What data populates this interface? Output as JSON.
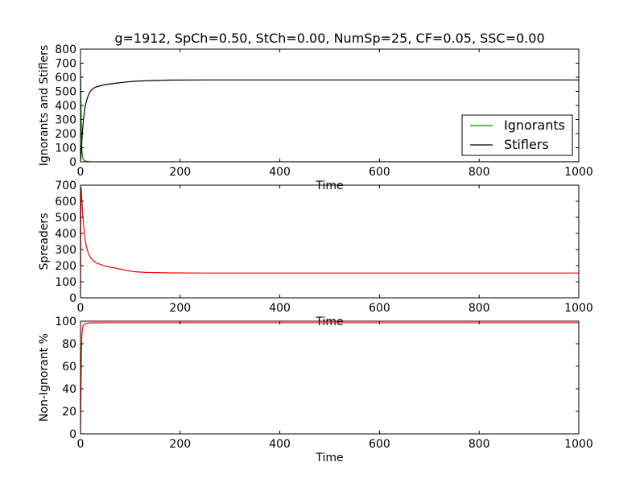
{
  "chart_data": [
    {
      "type": "line",
      "title": "g=1912, SpCh=0.50, StCh=0.00, NumSp=25, CF=0.05, SSC=0.00",
      "xlabel": "Time",
      "ylabel": "Ignorants and Stiflers",
      "xlim": [
        0,
        1000
      ],
      "ylim": [
        0,
        800
      ],
      "xticks": [
        0,
        200,
        400,
        600,
        800,
        1000
      ],
      "yticks": [
        0,
        100,
        200,
        300,
        400,
        500,
        600,
        700,
        800
      ],
      "legend": "lower-right",
      "series": [
        {
          "name": "Ignorants",
          "color": "#008000",
          "x": [
            0,
            1,
            2,
            3,
            5,
            8,
            12,
            20,
            50,
            100,
            200,
            400,
            600,
            800,
            1000
          ],
          "y": [
            700,
            400,
            180,
            70,
            20,
            8,
            3,
            1,
            0,
            0,
            0,
            0,
            0,
            0,
            0
          ]
        },
        {
          "name": "Stiflers",
          "color": "#000000",
          "x": [
            0,
            2,
            4,
            6,
            8,
            10,
            14,
            18,
            22,
            26,
            30,
            40,
            50,
            70,
            90,
            110,
            130,
            150,
            180,
            250,
            400,
            600,
            800,
            1000
          ],
          "y": [
            0,
            110,
            220,
            300,
            360,
            405,
            455,
            490,
            510,
            522,
            530,
            540,
            548,
            558,
            566,
            572,
            575,
            577,
            580,
            581,
            581,
            581,
            581,
            581
          ]
        }
      ]
    },
    {
      "type": "line",
      "xlabel": "Time",
      "ylabel": "Spreaders",
      "xlim": [
        0,
        1000
      ],
      "ylim": [
        0,
        700
      ],
      "xticks": [
        0,
        200,
        400,
        600,
        800,
        1000
      ],
      "yticks": [
        0,
        100,
        200,
        300,
        400,
        500,
        600,
        700
      ],
      "series": [
        {
          "color": "#ff0000",
          "x": [
            0,
            1,
            2,
            3,
            4,
            6,
            8,
            10,
            12,
            15,
            18,
            22,
            26,
            30,
            40,
            50,
            60,
            70,
            80,
            90,
            100,
            110,
            120,
            130,
            150,
            180,
            250,
            400,
            600,
            800,
            1000
          ],
          "y": [
            0,
            690,
            660,
            600,
            540,
            460,
            400,
            350,
            315,
            285,
            262,
            243,
            230,
            220,
            207,
            197,
            190,
            185,
            178,
            172,
            166,
            162,
            160,
            158,
            157,
            155,
            154,
            154,
            154,
            154,
            154
          ]
        }
      ]
    },
    {
      "type": "line",
      "xlabel": "Time",
      "ylabel": "Non-Ignorant %",
      "xlim": [
        0,
        1000
      ],
      "ylim": [
        0,
        100
      ],
      "xticks": [
        0,
        200,
        400,
        600,
        800,
        1000
      ],
      "yticks": [
        0,
        20,
        40,
        60,
        80,
        100
      ],
      "series": [
        {
          "color": "#ff0000",
          "x": [
            0,
            1,
            2,
            3,
            5,
            8,
            12,
            20,
            50,
            100,
            200,
            400,
            600,
            800,
            1000
          ],
          "y": [
            0,
            40,
            75,
            90,
            96,
            97.5,
            98,
            98.5,
            98.6,
            98.6,
            98.6,
            98.6,
            98.6,
            98.6,
            98.6
          ]
        }
      ]
    }
  ]
}
